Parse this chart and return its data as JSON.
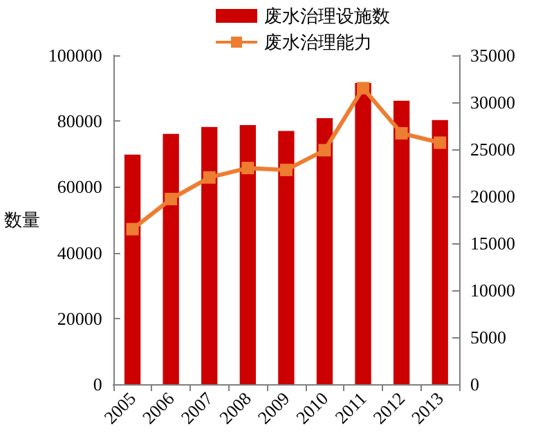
{
  "chart_data": {
    "type": "bar",
    "ylabel": "数量",
    "categories": [
      "2005",
      "2006",
      "2007",
      "2008",
      "2009",
      "2010",
      "2011",
      "2012",
      "2013"
    ],
    "series": [
      {
        "name": "废水治理设施数",
        "color": "#cc0000",
        "values": [
          69800,
          76100,
          78200,
          78800,
          77000,
          80900,
          91600,
          86200,
          80300
        ]
      },
      {
        "name": "废水治理能力",
        "type": "line",
        "axis": "y2",
        "color": "#ed7d31",
        "marker": "square",
        "values": [
          16500,
          19700,
          22000,
          23000,
          22800,
          24900,
          31500,
          26700,
          25700
        ]
      }
    ],
    "ylim": [
      0,
      100000
    ],
    "yticks": [
      0,
      20000,
      40000,
      60000,
      80000,
      100000
    ],
    "y2lim": [
      0,
      35000
    ],
    "y2ticks": [
      0,
      5000,
      10000,
      15000,
      20000,
      25000,
      30000,
      35000
    ],
    "grid": false,
    "legend": "top"
  }
}
